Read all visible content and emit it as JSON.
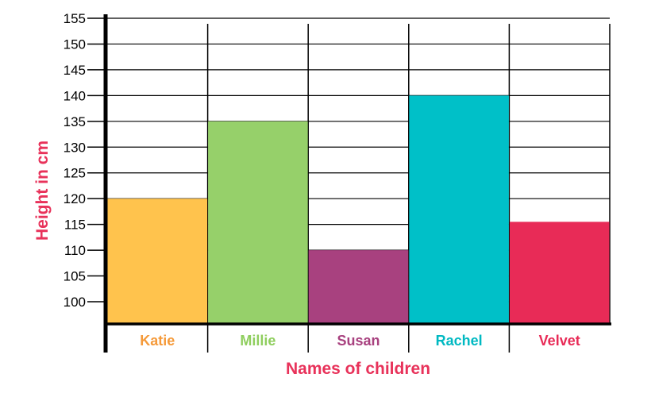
{
  "chart_data": {
    "type": "bar",
    "title": "",
    "xlabel": "Names of children",
    "ylabel": "Height in cm",
    "categories": [
      "Katie",
      "Millie",
      "Susan",
      "Rachel",
      "Velvet"
    ],
    "values": [
      120,
      135,
      110,
      140,
      115.5
    ],
    "colors": [
      "#ffc34d",
      "#96d06a",
      "#a8417f",
      "#00c0c8",
      "#e82b57"
    ],
    "label_colors": [
      "#f59a3a",
      "#8fce5e",
      "#a8417f",
      "#00b9c2",
      "#e82b57"
    ],
    "yticks": [
      100,
      105,
      110,
      115,
      120,
      125,
      130,
      135,
      140,
      145,
      150,
      155
    ],
    "ylim": [
      100,
      155
    ],
    "grid": true,
    "legend": "none"
  }
}
